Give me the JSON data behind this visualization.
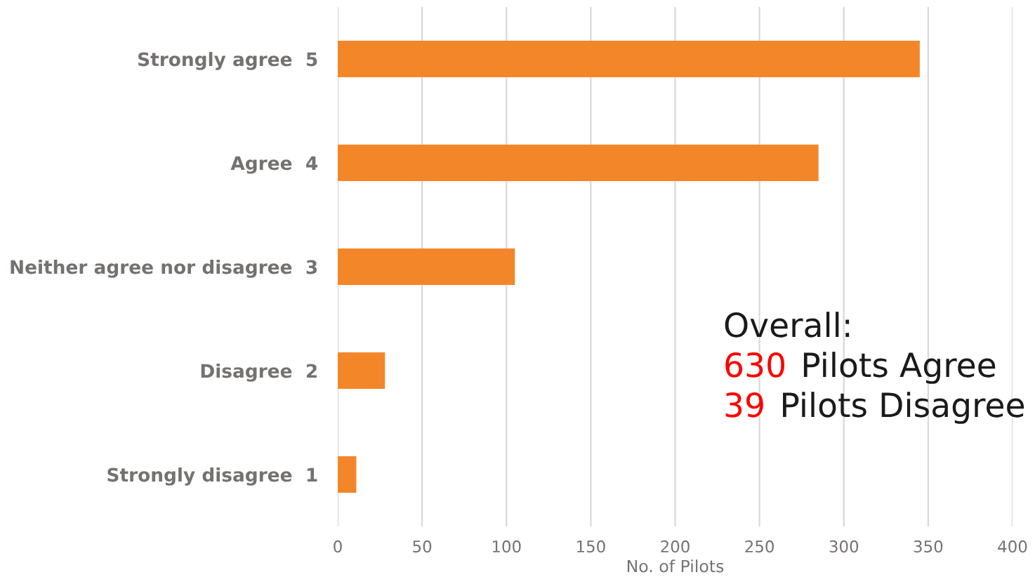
{
  "chart_data": {
    "type": "bar",
    "orientation": "horizontal",
    "categories": [
      "Strongly agree  5",
      "Agree  4",
      "Neither agree nor disagree  3",
      "Disagree  2",
      "Strongly disagree  1"
    ],
    "values": [
      345,
      285,
      105,
      28,
      11
    ],
    "color": "#f4862a",
    "xlabel": "No. of Pilots",
    "xlim": [
      0,
      400
    ],
    "xticks": [
      0,
      50,
      100,
      150,
      200,
      250,
      300,
      350,
      400
    ],
    "grid": "x",
    "annotations": [
      "Overall:",
      "630 Pilots Agree",
      "39 Pilots Disagree"
    ]
  }
}
